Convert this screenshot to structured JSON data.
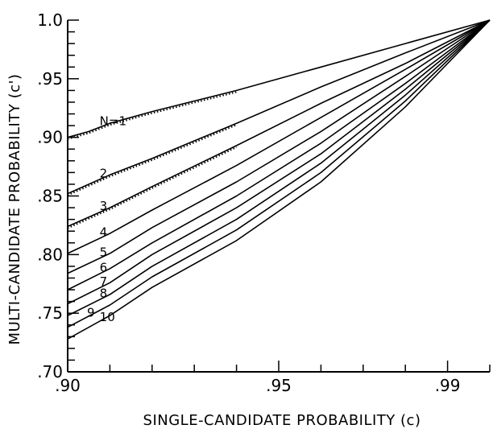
{
  "chart_data": {
    "type": "line",
    "title": "",
    "xlabel": "SINGLE-CANDIDATE  PROBABILITY (c)",
    "ylabel": "MULTI-CANDIDATE  PROBABILITY (c')",
    "xlim": [
      0.9,
      1.0
    ],
    "ylim": [
      0.7,
      1.0
    ],
    "x_ticks": [
      0.9,
      0.95,
      0.99
    ],
    "x_tick_labels": [
      ".90",
      ".95",
      ".99"
    ],
    "x_minor_step": 0.01,
    "y_ticks": [
      0.7,
      0.75,
      0.8,
      0.85,
      0.9,
      0.95,
      1.0
    ],
    "y_tick_labels": [
      ".70",
      ".75",
      ".80",
      ".85",
      ".90",
      ".95",
      "1.0"
    ],
    "y_minor_step": 0.01,
    "grid": false,
    "series": [
      {
        "name": "N=1",
        "x": [
          0.9,
          0.905,
          0.91,
          0.92,
          0.94,
          0.96,
          0.98,
          1.0
        ],
        "y": [
          0.9,
          0.905,
          0.912,
          0.922,
          0.94,
          0.96,
          0.98,
          1.0
        ],
        "dotted_overlay": true
      },
      {
        "name": "2",
        "x": [
          0.9,
          0.91,
          0.92,
          0.94,
          0.96,
          0.98,
          1.0
        ],
        "y": [
          0.852,
          0.868,
          0.882,
          0.912,
          0.943,
          0.972,
          1.0
        ],
        "dotted_overlay": true
      },
      {
        "name": "3",
        "x": [
          0.9,
          0.91,
          0.92,
          0.94,
          0.96,
          0.98,
          1.0
        ],
        "y": [
          0.824,
          0.84,
          0.858,
          0.893,
          0.929,
          0.963,
          1.0
        ],
        "dotted_overlay": true
      },
      {
        "name": "4",
        "x": [
          0.9,
          0.91,
          0.92,
          0.94,
          0.96,
          0.98,
          1.0
        ],
        "y": [
          0.801,
          0.818,
          0.838,
          0.876,
          0.917,
          0.958,
          1.0
        ]
      },
      {
        "name": "5",
        "x": [
          0.9,
          0.91,
          0.92,
          0.94,
          0.96,
          0.98,
          1.0
        ],
        "y": [
          0.784,
          0.801,
          0.823,
          0.862,
          0.905,
          0.952,
          1.0
        ]
      },
      {
        "name": "6",
        "x": [
          0.9,
          0.91,
          0.92,
          0.94,
          0.96,
          0.98,
          1.0
        ],
        "y": [
          0.77,
          0.788,
          0.81,
          0.85,
          0.895,
          0.946,
          1.0
        ]
      },
      {
        "name": "7",
        "x": [
          0.9,
          0.91,
          0.92,
          0.94,
          0.96,
          0.98,
          1.0
        ],
        "y": [
          0.758,
          0.776,
          0.8,
          0.84,
          0.886,
          0.941,
          1.0
        ]
      },
      {
        "name": "8",
        "x": [
          0.9,
          0.91,
          0.92,
          0.94,
          0.96,
          0.98,
          1.0
        ],
        "y": [
          0.748,
          0.766,
          0.79,
          0.83,
          0.878,
          0.936,
          1.0
        ]
      },
      {
        "name": "9",
        "x": [
          0.9,
          0.91,
          0.92,
          0.94,
          0.96,
          0.98,
          1.0
        ],
        "y": [
          0.738,
          0.757,
          0.781,
          0.821,
          0.87,
          0.931,
          1.0
        ]
      },
      {
        "name": "10",
        "x": [
          0.9,
          0.91,
          0.92,
          0.94,
          0.96,
          0.98,
          1.0
        ],
        "y": [
          0.728,
          0.748,
          0.772,
          0.812,
          0.862,
          0.926,
          1.0
        ]
      }
    ]
  }
}
